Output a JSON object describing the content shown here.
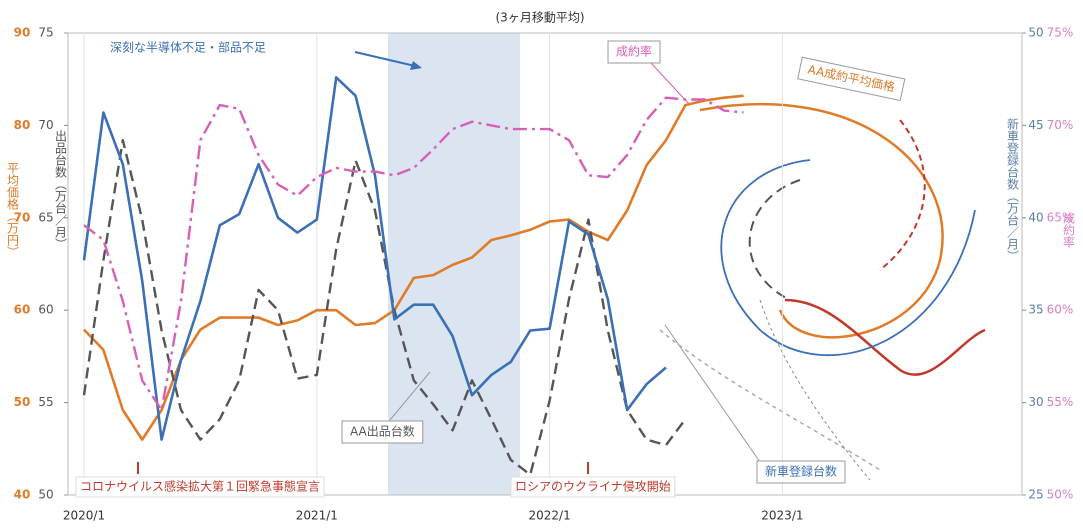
{
  "chart_data": {
    "type": "line",
    "subtitle": "(3ヶ月移動平均)",
    "categories": [
      "2020/1",
      null,
      null,
      null,
      null,
      null,
      null,
      null,
      null,
      null,
      null,
      null,
      "2021/1",
      null,
      null,
      null,
      null,
      null,
      null,
      null,
      null,
      null,
      null,
      null,
      "2022/1",
      null,
      null,
      null,
      null,
      null,
      null,
      null,
      null,
      null,
      null,
      null,
      "2023/1",
      null,
      null,
      null,
      null,
      null,
      null,
      null,
      null,
      null,
      null,
      null,
      null
    ],
    "axes": [
      {
        "label": "平均価格（万円）",
        "color": "#e07b2a",
        "side": "left",
        "lim": [
          40,
          90
        ],
        "ticks": [
          40,
          50,
          60,
          70,
          80,
          90
        ]
      },
      {
        "label": "出品台数（万台／月）",
        "color": "#555555",
        "side": "left",
        "lim": [
          50,
          75
        ],
        "ticks": [
          50,
          55,
          60,
          65,
          70,
          75
        ]
      },
      {
        "label": "新車登録台数（万台／月）",
        "color": "#5b7fa8",
        "side": "right",
        "lim": [
          25,
          50
        ],
        "ticks": [
          25,
          30,
          35,
          40,
          45,
          50
        ]
      },
      {
        "label": "成約率",
        "color": "#d87fc4",
        "side": "right",
        "lim": [
          50,
          75
        ],
        "ticks": [
          {
            "value": 50,
            "label": "50%"
          },
          {
            "value": 55,
            "label": "55%"
          },
          {
            "value": 60,
            "label": "60%"
          },
          {
            "value": 65,
            "label": "65%"
          },
          {
            "value": 70,
            "label": "70%"
          },
          {
            "value": 75,
            "label": "75%"
          }
        ]
      }
    ],
    "series": [
      {
        "name": "AA成約平均価格",
        "color": "#e07b2a",
        "axis": 0,
        "style": "solid",
        "values": [
          57.9,
          55.7,
          49.2,
          46.0,
          49.2,
          54.6,
          57.9,
          59.2,
          59.2,
          59.2,
          58.4,
          58.9,
          60.0,
          60.0,
          58.4,
          58.6,
          60.0,
          63.5,
          63.8,
          64.9,
          65.7,
          67.6,
          68.1,
          68.7,
          69.6,
          69.8,
          68.5,
          67.6,
          70.8,
          75.7,
          78.4,
          82.2,
          82.7,
          83.0,
          83.2,
          null,
          null,
          null,
          null,
          null,
          null,
          null,
          null,
          null,
          null,
          null,
          null,
          null,
          null
        ]
      },
      {
        "name": "AA出品台数",
        "color": "#555555",
        "axis": 1,
        "style": "dashed",
        "values": [
          55.4,
          62.7,
          69.2,
          64.9,
          58.9,
          54.6,
          53.0,
          54.1,
          56.2,
          61.1,
          60.0,
          56.3,
          56.5,
          63.3,
          68.1,
          65.4,
          60.0,
          56.2,
          54.9,
          53.5,
          56.2,
          54.1,
          51.9,
          51.1,
          55.1,
          60.6,
          64.9,
          58.9,
          54.6,
          53.0,
          52.7,
          54.1,
          null,
          null,
          null,
          null,
          null,
          null,
          null,
          null,
          null,
          null,
          null,
          null,
          null,
          null,
          null,
          null,
          null
        ]
      },
      {
        "name": "新車登録台数",
        "color": "#3b6fb6",
        "axis": 2,
        "style": "solid",
        "values": [
          37.7,
          45.7,
          42.9,
          36.6,
          28.0,
          32.3,
          35.5,
          39.6,
          40.2,
          42.9,
          40.0,
          39.2,
          39.9,
          47.6,
          46.6,
          42.3,
          34.5,
          35.3,
          35.3,
          33.6,
          30.4,
          31.5,
          32.2,
          33.9,
          34.0,
          39.8,
          39.1,
          35.6,
          29.6,
          31.0,
          31.9,
          null,
          null,
          null,
          null,
          null,
          null,
          null,
          null,
          null,
          null,
          null,
          null,
          null,
          null,
          null,
          null,
          null,
          null
        ]
      },
      {
        "name": "成約率",
        "color": "#d65fb8",
        "axis": 3,
        "style": "dashdot",
        "values": [
          64.6,
          63.8,
          60.5,
          56.2,
          54.6,
          60.5,
          69.2,
          71.1,
          70.9,
          68.4,
          66.8,
          66.2,
          67.2,
          67.7,
          67.5,
          67.5,
          67.3,
          67.7,
          68.7,
          69.8,
          70.2,
          70.0,
          69.8,
          69.8,
          69.8,
          69.2,
          67.3,
          67.2,
          68.4,
          70.3,
          71.5,
          71.4,
          71.4,
          70.8,
          70.7,
          null,
          null,
          null,
          null,
          null,
          null,
          null,
          null,
          null,
          null,
          null,
          null,
          null,
          null
        ]
      }
    ],
    "annotations": [
      "深刻な半導体不足・部品不足",
      "コロナウイルス感染拡大第１回緊急事態宣言",
      "ロシアのウクライナ侵攻開始"
    ],
    "grid": true
  }
}
